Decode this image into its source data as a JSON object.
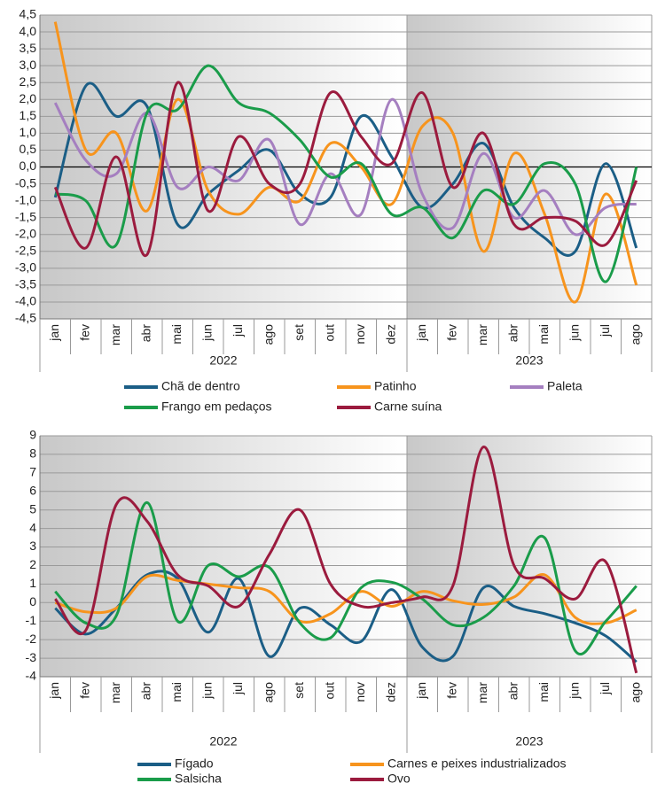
{
  "chart_data": [
    {
      "type": "line",
      "categories": [
        "jan",
        "fev",
        "mar",
        "abr",
        "mai",
        "jun",
        "jul",
        "ago",
        "set",
        "out",
        "nov",
        "dez",
        "jan",
        "fev",
        "mar",
        "abr",
        "mai",
        "jun",
        "jul",
        "ago"
      ],
      "x_groups": [
        "2022",
        "2023"
      ],
      "ylim": [
        -4.5,
        4.5
      ],
      "yticks": [
        {
          "value": -4.5,
          "label": "-4,5"
        },
        {
          "value": -4,
          "label": "-4,0"
        },
        {
          "value": -3.5,
          "label": "-3,5"
        },
        {
          "value": -3,
          "label": "-3,0"
        },
        {
          "value": -2.5,
          "label": "-2,5"
        },
        {
          "value": -2,
          "label": "-2,0"
        },
        {
          "value": -1.5,
          "label": "-1,5"
        },
        {
          "value": -1,
          "label": "-1,0"
        },
        {
          "value": -0.5,
          "label": "-0,5"
        },
        {
          "value": 0,
          "label": "0,0"
        },
        {
          "value": 0.5,
          "label": "0,5"
        },
        {
          "value": 1,
          "label": "1,0"
        },
        {
          "value": 1.5,
          "label": "1,5"
        },
        {
          "value": 2,
          "label": "2,0"
        },
        {
          "value": 2.5,
          "label": "2,5"
        },
        {
          "value": 3,
          "label": "3,0"
        },
        {
          "value": 3.5,
          "label": "3,5"
        },
        {
          "value": 4,
          "label": "4,0"
        },
        {
          "value": 4.5,
          "label": "4,5"
        }
      ],
      "grid": true,
      "zero_line": true,
      "legend": "bottom",
      "series": [
        {
          "name": "Chã de dentro",
          "color": "#1b5e86",
          "values": [
            -0.9,
            2.4,
            1.5,
            1.8,
            -1.7,
            -0.8,
            -0.1,
            0.5,
            -0.8,
            -0.9,
            1.5,
            0.3,
            -1.2,
            -0.5,
            0.7,
            -1.2,
            -2.1,
            -2.5,
            0.1,
            -2.4
          ]
        },
        {
          "name": "Patinho",
          "color": "#f7941d",
          "values": [
            4.3,
            0.5,
            1.0,
            -1.3,
            2.0,
            -0.7,
            -1.4,
            -0.6,
            -1.0,
            0.7,
            0.0,
            -1.1,
            1.2,
            1.0,
            -2.5,
            0.4,
            -1.4,
            -4.0,
            -0.8,
            -3.5
          ]
        },
        {
          "name": "Paleta",
          "color": "#a57fc0",
          "values": [
            1.9,
            0.2,
            -0.2,
            1.6,
            -0.6,
            0.0,
            -0.4,
            0.8,
            -1.7,
            -0.2,
            -1.4,
            2.0,
            -0.8,
            -1.8,
            0.4,
            -1.5,
            -0.7,
            -2.0,
            -1.2,
            -1.1
          ]
        },
        {
          "name": "Frango em pedaços",
          "color": "#1a9c4a",
          "values": [
            -0.8,
            -1.0,
            -2.3,
            1.6,
            1.7,
            3.0,
            1.9,
            1.6,
            0.8,
            -0.3,
            0.1,
            -1.4,
            -1.2,
            -2.1,
            -0.7,
            -1.1,
            0.1,
            -0.5,
            -3.4,
            0.0
          ]
        },
        {
          "name": "Carne suína",
          "color": "#9b1b3e",
          "values": [
            -0.6,
            -2.4,
            0.3,
            -2.6,
            2.5,
            -1.3,
            0.9,
            -0.5,
            -0.5,
            2.2,
            0.9,
            0.1,
            2.2,
            -0.6,
            1.0,
            -1.7,
            -1.5,
            -1.6,
            -2.3,
            -0.4
          ]
        }
      ]
    },
    {
      "type": "line",
      "categories": [
        "jan",
        "fev",
        "mar",
        "abr",
        "mai",
        "jun",
        "jul",
        "ago",
        "set",
        "out",
        "nov",
        "dez",
        "jan",
        "fev",
        "mar",
        "abr",
        "mai",
        "jun",
        "jul",
        "ago"
      ],
      "x_groups": [
        "2022",
        "2023"
      ],
      "ylim": [
        -4,
        9
      ],
      "yticks": [
        -4,
        -3,
        -2,
        -1,
        0,
        1,
        2,
        3,
        4,
        5,
        6,
        7,
        8,
        9
      ],
      "grid": true,
      "zero_line": false,
      "legend": "bottom",
      "series": [
        {
          "name": "Fígado",
          "color": "#1b5e86",
          "values": [
            -0.3,
            -1.7,
            -0.3,
            1.5,
            1.3,
            -1.6,
            1.3,
            -2.9,
            -0.3,
            -1.2,
            -2.1,
            0.7,
            -2.4,
            -2.9,
            0.8,
            -0.2,
            -0.6,
            -1.1,
            -1.8,
            -3.2
          ]
        },
        {
          "name": "Carnes e peixes industrializados",
          "color": "#f7941d",
          "values": [
            0.0,
            -0.5,
            -0.3,
            1.4,
            1.2,
            1.0,
            0.8,
            0.6,
            -1.0,
            -0.6,
            0.6,
            -0.2,
            0.6,
            0.1,
            -0.1,
            0.3,
            1.5,
            -0.8,
            -1.1,
            -0.4
          ]
        },
        {
          "name": "Salsicha",
          "color": "#1a9c4a",
          "values": [
            0.6,
            -1.1,
            -0.7,
            5.4,
            -1.0,
            2.0,
            1.4,
            1.9,
            -1.1,
            -1.9,
            0.8,
            1.1,
            0.2,
            -1.2,
            -0.8,
            0.9,
            3.5,
            -2.6,
            -1.0,
            0.9
          ]
        },
        {
          "name": "Ovo",
          "color": "#9b1b3e",
          "values": [
            0.2,
            -1.5,
            5.3,
            4.4,
            1.5,
            0.9,
            -0.2,
            2.6,
            5.0,
            1.0,
            -0.2,
            0.0,
            0.3,
            0.9,
            8.4,
            2.0,
            1.3,
            0.2,
            2.2,
            -3.8
          ]
        }
      ]
    }
  ]
}
